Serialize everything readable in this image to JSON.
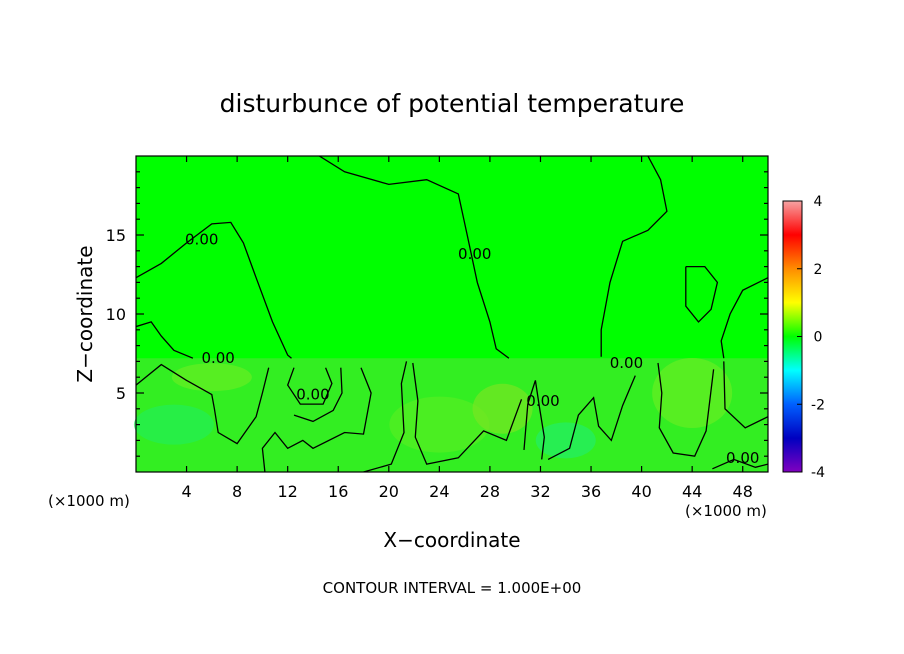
{
  "chart_data": {
    "type": "heatmap",
    "title": "disturbunce of potential temperature",
    "xlabel": "X−coordinate",
    "ylabel": "Z−coordinate",
    "x_unit_left": "(×1000 m)",
    "x_unit_right": "(×1000 m)",
    "footer": "CONTOUR INTERVAL = 1.000E+00",
    "xlim": [
      0,
      50
    ],
    "ylim": [
      0,
      20
    ],
    "x_ticks": [
      4,
      8,
      12,
      16,
      20,
      24,
      28,
      32,
      36,
      40,
      44,
      48
    ],
    "y_ticks": [
      5,
      10,
      15
    ],
    "colorbar": {
      "range": [
        -4,
        4
      ],
      "ticks": [
        4,
        2,
        0,
        -2,
        -4
      ],
      "colors": [
        "#f6a3a3",
        "#ff0000",
        "#ff8c00",
        "#ffff00",
        "#00ff00",
        "#00ffff",
        "#0060ff",
        "#0000c0",
        "#8000c0"
      ]
    },
    "background_color": "#00ff00",
    "contour_interval": 1.0,
    "contour_labels": [
      {
        "text": "0.00",
        "x": 5.2,
        "y": 14.7
      },
      {
        "text": "0.00",
        "x": 26.8,
        "y": 13.8
      },
      {
        "text": "0.00",
        "x": 6.5,
        "y": 7.2
      },
      {
        "text": "0.00",
        "x": 38.8,
        "y": 6.9
      },
      {
        "text": "0.00",
        "x": 14.0,
        "y": 4.9
      },
      {
        "text": "0.00",
        "x": 32.2,
        "y": 4.5
      },
      {
        "text": "0.00",
        "x": 48.0,
        "y": 0.9
      }
    ]
  }
}
